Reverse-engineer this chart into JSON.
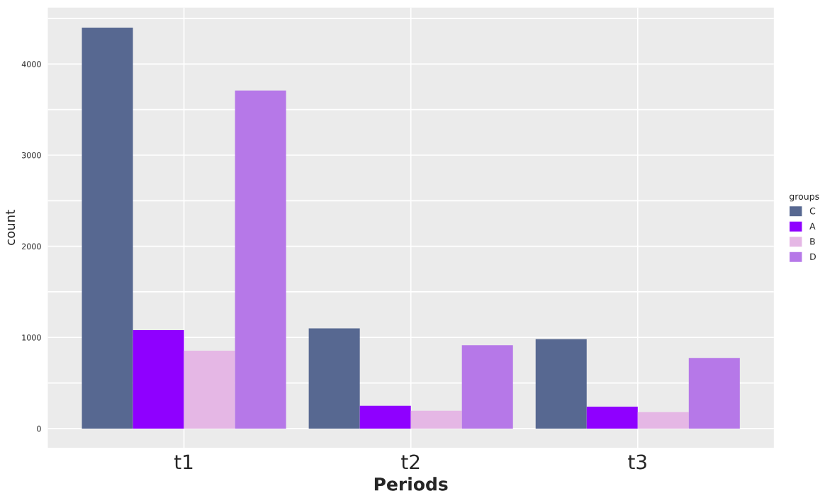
{
  "chart_data": {
    "type": "bar",
    "xlabel": "Periods",
    "ylabel": "count",
    "legend_title": "groups",
    "categories": [
      "t1",
      "t2",
      "t3"
    ],
    "series": [
      {
        "name": "C",
        "color": "#576891",
        "values": [
          4400,
          1100,
          980
        ]
      },
      {
        "name": "A",
        "color": "#8f00ff",
        "values": [
          1080,
          250,
          240
        ]
      },
      {
        "name": "B",
        "color": "#e5b7e5",
        "values": [
          855,
          195,
          180
        ]
      },
      {
        "name": "D",
        "color": "#b678e8",
        "values": [
          3710,
          915,
          775
        ]
      }
    ],
    "ylim": [
      -210,
      4620
    ],
    "yticks": [
      0,
      {
        "value": 500,
        "label": null
      },
      1000,
      {
        "value": 1500,
        "label": null
      },
      2000,
      {
        "value": 2500,
        "label": null
      },
      3000,
      {
        "value": 3500,
        "label": null
      },
      4000,
      {
        "value": 4500,
        "label": null
      }
    ],
    "grid": true,
    "legend": "right"
  }
}
